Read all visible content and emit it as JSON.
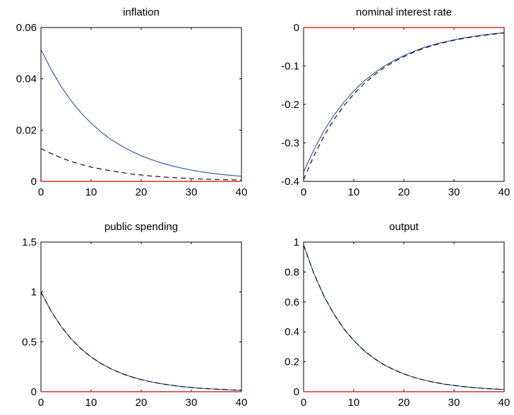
{
  "colors": {
    "solid_series": "#2b4fa8",
    "dashed_series": "#000000",
    "zero_line": "#d0312d"
  },
  "chart_data": [
    {
      "type": "line",
      "title": "inflation",
      "xlim": [
        0,
        40
      ],
      "ylim": [
        0,
        0.06
      ],
      "x_ticks": [
        0,
        10,
        20,
        30,
        40
      ],
      "y_ticks": [
        0,
        0.02,
        0.04,
        0.06
      ],
      "x_tick_labels": [
        "0",
        "10",
        "20",
        "30",
        "40"
      ],
      "y_tick_labels": [
        "0",
        "0.02",
        "0.04",
        "0.06"
      ],
      "grid": false,
      "x": [
        0,
        2,
        4,
        6,
        8,
        10,
        12,
        14,
        16,
        18,
        20,
        22,
        24,
        26,
        28,
        30,
        32,
        34,
        36,
        38,
        40
      ],
      "series": [
        {
          "style": "solid",
          "values": [
            0.0515,
            0.0437,
            0.0371,
            0.0315,
            0.0267,
            0.0227,
            0.0192,
            0.0163,
            0.0139,
            0.0118,
            0.01,
            0.0085,
            0.0072,
            0.0061,
            0.0052,
            0.0044,
            0.0037,
            0.0032,
            0.0027,
            0.0023,
            0.002
          ]
        },
        {
          "style": "dashed",
          "values": [
            0.0128,
            0.0109,
            0.0092,
            0.0078,
            0.0066,
            0.0056,
            0.0048,
            0.0041,
            0.0035,
            0.0029,
            0.0025,
            0.0021,
            0.0018,
            0.0015,
            0.0013,
            0.0011,
            0.0009,
            0.0008,
            0.0007,
            0.0006,
            0.0005
          ]
        },
        {
          "style": "zero",
          "values": [
            0,
            0
          ],
          "x": [
            0,
            40
          ]
        }
      ]
    },
    {
      "type": "line",
      "title": "nominal interest rate",
      "xlim": [
        0,
        40
      ],
      "ylim": [
        -0.4,
        0
      ],
      "x_ticks": [
        0,
        10,
        20,
        30,
        40
      ],
      "y_ticks": [
        -0.4,
        -0.3,
        -0.2,
        -0.1,
        0
      ],
      "x_tick_labels": [
        "0",
        "10",
        "20",
        "30",
        "40"
      ],
      "y_tick_labels": [
        "-0.4",
        "-0.3",
        "-0.2",
        "-0.1",
        "0"
      ],
      "grid": false,
      "x": [
        0,
        2,
        4,
        6,
        8,
        10,
        12,
        14,
        16,
        18,
        20,
        22,
        24,
        26,
        28,
        30,
        32,
        34,
        36,
        38,
        40
      ],
      "series": [
        {
          "style": "solid",
          "values": [
            -0.376,
            -0.319,
            -0.27,
            -0.229,
            -0.195,
            -0.165,
            -0.14,
            -0.119,
            -0.101,
            -0.086,
            -0.073,
            -0.062,
            -0.052,
            -0.044,
            -0.038,
            -0.032,
            -0.027,
            -0.023,
            -0.019,
            -0.016,
            -0.014
          ]
        },
        {
          "style": "dashed",
          "values": [
            -0.395,
            -0.335,
            -0.284,
            -0.24,
            -0.204,
            -0.173,
            -0.147,
            -0.124,
            -0.105,
            -0.089,
            -0.076,
            -0.064,
            -0.054,
            -0.046,
            -0.039,
            -0.033,
            -0.028,
            -0.024,
            -0.02,
            -0.017,
            -0.014
          ]
        },
        {
          "style": "zero",
          "values": [
            0,
            0
          ],
          "x": [
            0,
            40
          ]
        }
      ]
    },
    {
      "type": "line",
      "title": "public spending",
      "xlim": [
        0,
        40
      ],
      "ylim": [
        0,
        1.5
      ],
      "x_ticks": [
        0,
        10,
        20,
        30,
        40
      ],
      "y_ticks": [
        0,
        0.5,
        1,
        1.5
      ],
      "x_tick_labels": [
        "0",
        "10",
        "20",
        "30",
        "40"
      ],
      "y_tick_labels": [
        "0",
        "0.5",
        "1",
        "1.5"
      ],
      "grid": false,
      "x": [
        0,
        2,
        4,
        6,
        8,
        10,
        12,
        14,
        16,
        18,
        20,
        22,
        24,
        26,
        28,
        30,
        32,
        34,
        36,
        38,
        40
      ],
      "series": [
        {
          "style": "solid",
          "values": [
            1.0,
            0.81,
            0.656,
            0.531,
            0.43,
            0.349,
            0.282,
            0.229,
            0.185,
            0.15,
            0.122,
            0.098,
            0.08,
            0.065,
            0.052,
            0.042,
            0.034,
            0.028,
            0.023,
            0.018,
            0.015
          ]
        },
        {
          "style": "dashed",
          "values": [
            1.0,
            0.81,
            0.656,
            0.531,
            0.43,
            0.349,
            0.282,
            0.229,
            0.185,
            0.15,
            0.122,
            0.098,
            0.08,
            0.065,
            0.052,
            0.042,
            0.034,
            0.028,
            0.023,
            0.018,
            0.015
          ]
        },
        {
          "style": "zero",
          "values": [
            0,
            0
          ],
          "x": [
            0,
            40
          ]
        }
      ]
    },
    {
      "type": "line",
      "title": "output",
      "xlim": [
        0,
        40
      ],
      "ylim": [
        0,
        1
      ],
      "x_ticks": [
        0,
        10,
        20,
        30,
        40
      ],
      "y_ticks": [
        0,
        0.2,
        0.4,
        0.6,
        0.8,
        1
      ],
      "x_tick_labels": [
        "0",
        "10",
        "20",
        "30",
        "40"
      ],
      "y_tick_labels": [
        "0",
        "0.2",
        "0.4",
        "0.6",
        "0.8",
        "1"
      ],
      "grid": false,
      "x": [
        0,
        2,
        4,
        6,
        8,
        10,
        12,
        14,
        16,
        18,
        20,
        22,
        24,
        26,
        28,
        30,
        32,
        34,
        36,
        38,
        40
      ],
      "series": [
        {
          "style": "solid",
          "values": [
            0.98,
            0.794,
            0.643,
            0.521,
            0.422,
            0.342,
            0.277,
            0.224,
            0.181,
            0.147,
            0.119,
            0.096,
            0.078,
            0.063,
            0.051,
            0.042,
            0.034,
            0.027,
            0.022,
            0.018,
            0.015
          ]
        },
        {
          "style": "dashed",
          "values": [
            0.98,
            0.794,
            0.643,
            0.521,
            0.422,
            0.342,
            0.277,
            0.224,
            0.181,
            0.147,
            0.119,
            0.096,
            0.078,
            0.063,
            0.051,
            0.042,
            0.034,
            0.027,
            0.022,
            0.018,
            0.015
          ]
        },
        {
          "style": "zero",
          "values": [
            0,
            0
          ],
          "x": [
            0,
            40
          ]
        }
      ]
    }
  ]
}
